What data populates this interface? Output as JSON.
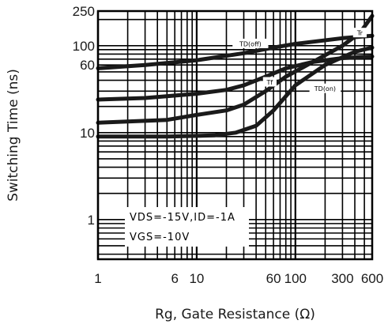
{
  "chart_data": {
    "type": "line",
    "xscale": "log",
    "yscale": "log",
    "xlim": [
      1,
      600
    ],
    "ylim": [
      0.35,
      250
    ],
    "xlabel": "Rg, Gate Resistance (Ω)",
    "ylabel": "Switching Time (ns)",
    "x_ticks": [
      1,
      6,
      10,
      60,
      100,
      300,
      600
    ],
    "x_tick_labels": [
      "1",
      "6",
      "10",
      "60",
      "100",
      "300",
      "600"
    ],
    "y_ticks": [
      1,
      10,
      60,
      100,
      250
    ],
    "y_tick_labels": [
      "1",
      "10",
      "60",
      "100",
      "250"
    ],
    "grid": true,
    "conditions": [
      "VDS=-15V,ID=-1A",
      "VGS=-10V"
    ],
    "series": [
      {
        "name": "TD(off)",
        "x": [
          1,
          3,
          10,
          30,
          60,
          100,
          300,
          600
        ],
        "y": [
          55,
          60,
          68,
          82,
          95,
          105,
          122,
          130
        ]
      },
      {
        "name": "Tf",
        "x": [
          1,
          3,
          10,
          20,
          30,
          50,
          80,
          150,
          300,
          600
        ],
        "y": [
          24,
          25,
          28,
          31,
          35,
          44,
          55,
          65,
          72,
          75
        ]
      },
      {
        "name": "Tr",
        "x": [
          1,
          5,
          10,
          20,
          30,
          50,
          80,
          150,
          300,
          450,
          600
        ],
        "y": [
          13,
          14,
          16,
          18,
          21,
          30,
          44,
          65,
          100,
          140,
          220
        ]
      },
      {
        "name": "TD(on)",
        "x": [
          1,
          5,
          15,
          25,
          40,
          60,
          100,
          200,
          400,
          600
        ],
        "y": [
          9,
          9,
          9.3,
          10,
          12,
          18,
          35,
          60,
          85,
          95
        ]
      }
    ]
  }
}
